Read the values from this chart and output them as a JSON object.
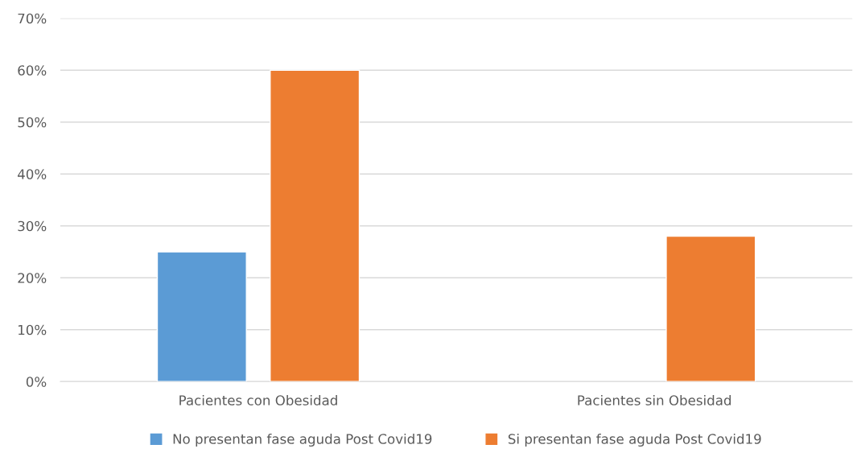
{
  "chart_data": {
    "type": "bar",
    "categories": [
      "Pacientes con Obesidad",
      "Pacientes sin Obesidad"
    ],
    "series": [
      {
        "name": "No presentan fase aguda Post Covid19",
        "color": "#5b9bd5",
        "values": [
          25,
          null
        ]
      },
      {
        "name": "Si presentan fase aguda Post Covid19",
        "color": "#ed7d31",
        "values": [
          60,
          28
        ]
      }
    ],
    "ylim": [
      0,
      70
    ],
    "yticks": [
      {
        "value": 0,
        "label": "0%"
      },
      {
        "value": 10,
        "label": "10%"
      },
      {
        "value": 20,
        "label": "20%"
      },
      {
        "value": 30,
        "label": "30%"
      },
      {
        "value": 40,
        "label": "40%"
      },
      {
        "value": 50,
        "label": "50%"
      },
      {
        "value": 60,
        "label": "60%"
      },
      {
        "value": 70,
        "label": "70%"
      }
    ],
    "grid": "y",
    "legend": "bottom"
  }
}
